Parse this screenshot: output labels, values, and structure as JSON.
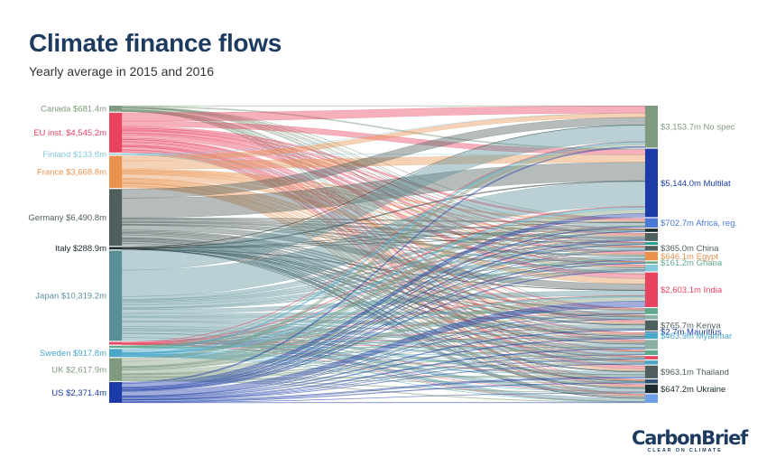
{
  "header": {
    "title": "Climate finance flows",
    "subtitle": "Yearly average in 2015 and 2016"
  },
  "logo": {
    "name": "CarbonBrief",
    "tagline": "CLEAR ON CLIMATE"
  },
  "chart_data": {
    "type": "sankey",
    "title": "Climate finance flows",
    "subtitle": "Yearly average in 2015 and 2016",
    "sources": [
      {
        "label": "Canada $681.4m",
        "value": 681.4,
        "color": "#7f9a7e"
      },
      {
        "label": "EU inst. $4,545.2m",
        "value": 4545.2,
        "color": "#e8435f"
      },
      {
        "label": "Finland $133.8m",
        "value": 133.8,
        "color": "#86c8dc"
      },
      {
        "label": "France $3,668.8m",
        "value": 3668.8,
        "color": "#e8924e"
      },
      {
        "label": "Germany $6,490.8m",
        "value": 6490.8,
        "color": "#4f5f5e"
      },
      {
        "label": "Italy $288.9m",
        "value": 288.9,
        "color": "#1b2b2e"
      },
      {
        "label": "Japan $10,319.2m",
        "value": 10319.2,
        "color": "#5a8f98"
      },
      {
        "label": "",
        "value": 300,
        "color": "#e8435f"
      },
      {
        "label": "",
        "value": 250,
        "color": "#5fa88c"
      },
      {
        "label": "Sweden $917.8m",
        "value": 917.8,
        "color": "#4aa7c9"
      },
      {
        "label": "UK $2,617.9m",
        "value": 2617.9,
        "color": "#7f9a7e"
      },
      {
        "label": "US $2,371.4m",
        "value": 2371.4,
        "color": "#1c3ba8"
      }
    ],
    "targets": [
      {
        "label": "$3,153.7m No spec",
        "value": 3153.7,
        "color": "#7f9a7e"
      },
      {
        "label": "$5,144.0m Multilat",
        "value": 5144.0,
        "color": "#1c3ba8"
      },
      {
        "label": "$702.7m Africa, reg.",
        "value": 702.7,
        "color": "#4a78d6"
      },
      {
        "label": "",
        "value": 250,
        "color": "#1b2b2e"
      },
      {
        "label": "",
        "value": 600,
        "color": "#4f5f5e"
      },
      {
        "label": "",
        "value": 200,
        "color": "#2a9d8f"
      },
      {
        "label": "$365.0m China",
        "value": 365.0,
        "color": "#4f5f5e"
      },
      {
        "label": "$646.1m Egypt",
        "value": 646.1,
        "color": "#e8924e"
      },
      {
        "label": "$161.2m Ghana",
        "value": 161.2,
        "color": "#5fa88c"
      },
      {
        "label": "",
        "value": 500,
        "color": "#86c8dc"
      },
      {
        "label": "$2,603.1m India",
        "value": 2603.1,
        "color": "#e8435f"
      },
      {
        "label": "",
        "value": 450,
        "color": "#5fa88c"
      },
      {
        "label": "",
        "value": 300,
        "color": "#8bb0a3"
      },
      {
        "label": "$765.7m Kenya",
        "value": 765.7,
        "color": "#4f5f5e"
      },
      {
        "label": "$2.7m Mauritius",
        "value": 2.7,
        "color": "#1c3ba8"
      },
      {
        "label": "$463.9m Myanmar",
        "value": 463.9,
        "color": "#4aa7c9"
      },
      {
        "label": "",
        "value": 700,
        "color": "#8bb0a3"
      },
      {
        "label": "",
        "value": 350,
        "color": "#5fa88c"
      },
      {
        "label": "",
        "value": 250,
        "color": "#e8435f"
      },
      {
        "label": "",
        "value": 300,
        "color": "#4aa7c9"
      },
      {
        "label": "$963.1m Thailand",
        "value": 963.1,
        "color": "#4f5f5e"
      },
      {
        "label": "",
        "value": 300,
        "color": "#2e4f6e"
      },
      {
        "label": "$647.2m Ukraine",
        "value": 647.2,
        "color": "#1b2b2e"
      },
      {
        "label": "",
        "value": 650,
        "color": "#6ea0e8"
      }
    ]
  }
}
